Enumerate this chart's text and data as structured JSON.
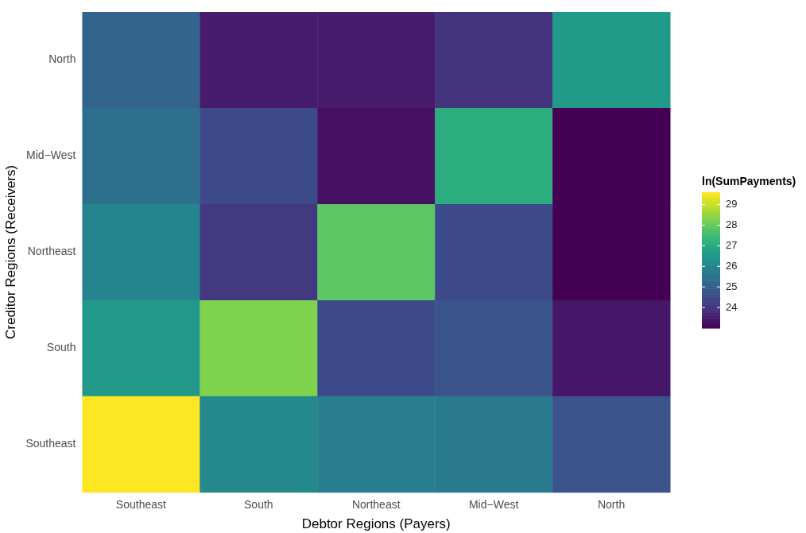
{
  "chart_data": {
    "type": "heatmap",
    "xlabel": "Debtor Regions (Payers)",
    "ylabel": "Creditor Regions (Receivers)",
    "clabel": "ln(SumPayments)",
    "categories": [
      "Southeast",
      "South",
      "Northeast",
      "Mid−West",
      "North"
    ],
    "y_categories": [
      "North",
      "Mid−West",
      "Northeast",
      "South",
      "Southeast"
    ],
    "cells": [
      [
        25.1,
        23.5,
        23.5,
        24.0,
        26.6
      ],
      [
        25.4,
        24.5,
        23.3,
        27.1,
        23.0
      ],
      [
        26.0,
        24.1,
        27.9,
        24.5,
        23.0
      ],
      [
        26.5,
        28.3,
        24.5,
        24.7,
        23.4
      ],
      [
        29.6,
        26.1,
        25.8,
        25.7,
        24.7
      ]
    ],
    "clim": [
      23.0,
      29.6
    ],
    "cticks": [
      24,
      25,
      26,
      27,
      28,
      29
    ],
    "grid": false
  }
}
